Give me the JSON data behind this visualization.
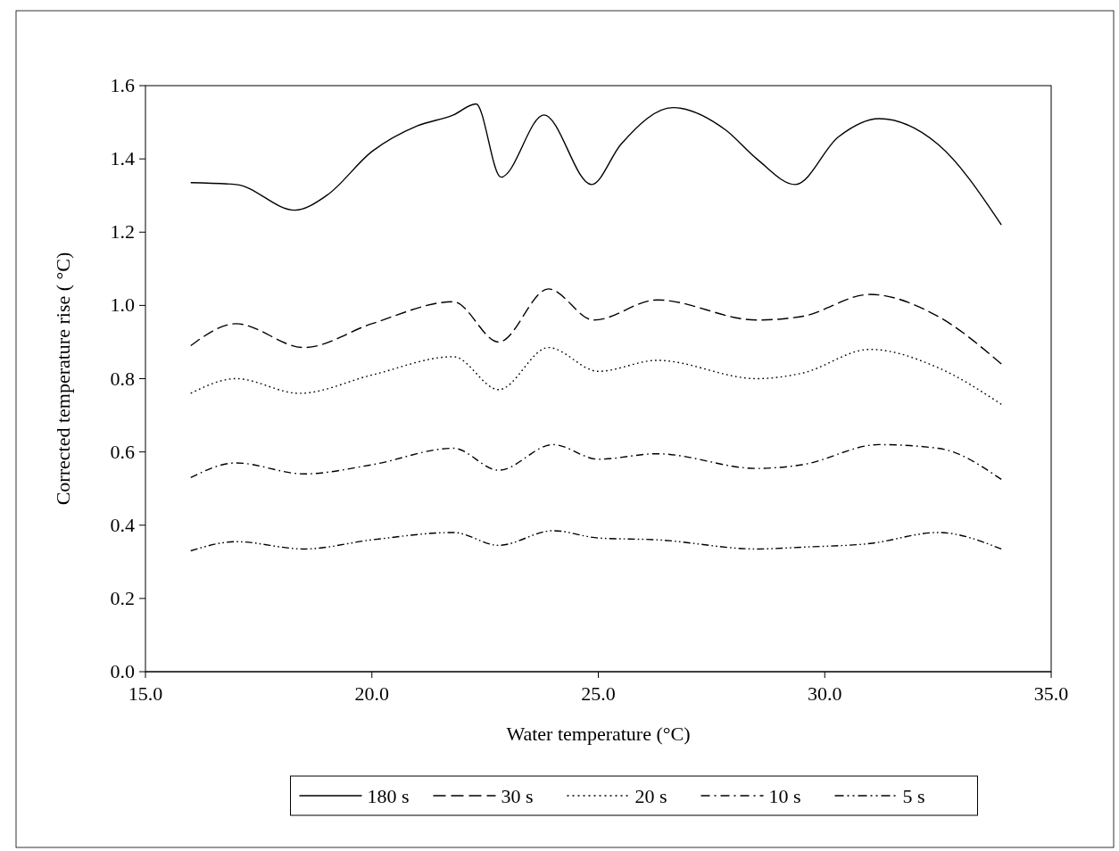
{
  "chart_data": {
    "type": "line",
    "xlabel": "Water temperature (°C)",
    "ylabel": "Corrected temperature rise ( °C)",
    "xlim": [
      15,
      35
    ],
    "xticks": [
      {
        "value": 15,
        "label": "15.0"
      },
      {
        "value": 20,
        "label": "20.0"
      },
      {
        "value": 25,
        "label": "25.0"
      },
      {
        "value": 30,
        "label": "30.0"
      },
      {
        "value": 35,
        "label": "35.0"
      }
    ],
    "ylim": [
      0,
      1.6
    ],
    "yticks": [
      {
        "value": 0,
        "label": "0.0"
      },
      {
        "value": 0.2,
        "label": "0.2"
      },
      {
        "value": 0.4,
        "label": "0.4"
      },
      {
        "value": 0.6,
        "label": "0.6"
      },
      {
        "value": 0.8,
        "label": "0.8"
      },
      {
        "value": 1,
        "label": "1.0"
      },
      {
        "value": 1.2,
        "label": "1.2"
      },
      {
        "value": 1.4,
        "label": "1.4"
      },
      {
        "value": 1.6,
        "label": "1.6"
      }
    ],
    "grid": false,
    "legend": "bottom",
    "marker": "none",
    "series": [
      {
        "name": "180 s",
        "color": "#000000",
        "line_style": "solid",
        "x": [
          16,
          17,
          18.3,
          19,
          20,
          21,
          21.8,
          22.3,
          22.85,
          23.8,
          24.85,
          25.5,
          26.65,
          27.8,
          28.5,
          29.35,
          30.3,
          31.2,
          32.5,
          33.9
        ],
        "values": [
          1.335,
          1.33,
          1.26,
          1.3,
          1.42,
          1.49,
          1.52,
          1.55,
          1.35,
          1.52,
          1.33,
          1.44,
          1.54,
          1.48,
          1.4,
          1.33,
          1.46,
          1.51,
          1.44,
          1.22
        ]
      },
      {
        "name": "30 s",
        "color": "#000000",
        "line_style": "dashed",
        "x": [
          16,
          17,
          18.5,
          20,
          21.8,
          22.8,
          23.9,
          24.9,
          26.3,
          28.5,
          29.5,
          31,
          32.5,
          33.9
        ],
        "values": [
          0.89,
          0.95,
          0.885,
          0.95,
          1.01,
          0.9,
          1.045,
          0.96,
          1.015,
          0.96,
          0.97,
          1.03,
          0.97,
          0.84
        ]
      },
      {
        "name": "20 s",
        "color": "#000000",
        "line_style": "dotted",
        "x": [
          16,
          17,
          18.4,
          20,
          21.8,
          22.8,
          23.9,
          25,
          26.3,
          28.5,
          29.5,
          31,
          32.5,
          33.9
        ],
        "values": [
          0.76,
          0.8,
          0.76,
          0.81,
          0.86,
          0.77,
          0.885,
          0.82,
          0.85,
          0.8,
          0.815,
          0.88,
          0.83,
          0.73
        ]
      },
      {
        "name": "10 s",
        "color": "#000000",
        "line_style": "dashdot",
        "x": [
          16,
          17,
          18.5,
          20,
          21.8,
          22.8,
          24,
          25,
          26.3,
          28.5,
          29.5,
          31.2,
          32.5,
          33.9
        ],
        "values": [
          0.53,
          0.57,
          0.54,
          0.565,
          0.61,
          0.55,
          0.62,
          0.58,
          0.595,
          0.555,
          0.565,
          0.62,
          0.61,
          0.525
        ]
      },
      {
        "name": "5 s",
        "color": "#000000",
        "line_style": "dashdotdot",
        "x": [
          16,
          17,
          18.5,
          20,
          21.8,
          22.8,
          24,
          25,
          26.3,
          28.5,
          29.5,
          31,
          32.5,
          33.9
        ],
        "values": [
          0.33,
          0.355,
          0.335,
          0.36,
          0.38,
          0.345,
          0.385,
          0.365,
          0.36,
          0.335,
          0.34,
          0.35,
          0.38,
          0.335
        ]
      }
    ]
  }
}
